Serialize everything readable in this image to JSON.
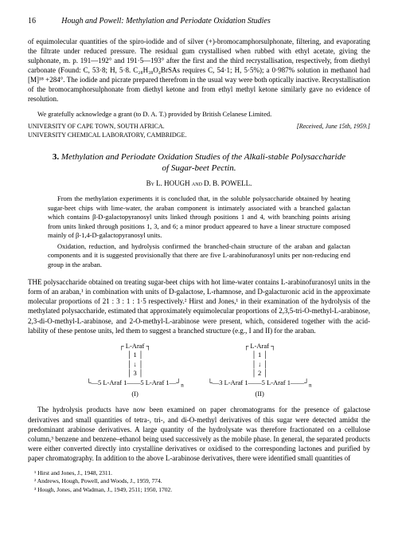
{
  "page_number": "16",
  "running_header": "Hough and Powell: Methylation and Periodate Oxidation Studies",
  "continuation_para": "of equimolecular quantities of the spiro-iodide and of silver (+)-bromocamphorsulphonate, filtering, and evaporating the filtrate under reduced pressure. The residual gum crystallised when rubbed with ethyl acetate, giving the sulphonate, m. p. 191—192° and 191·5—193° after the first and the third recrystallisation, respectively, from diethyl carbonate (Found: C, 53·8; H, 5·8. C₂₈H₃₈O₄BrSAs requires C, 54·1; H, 5·5%); a 0·987% solution in methanol had [M]¹⁸ +284°. The iodide and picrate prepared therefrom in the usual way were both optically inactive. Recrystallisation of the bromocamphorsulphonate from diethyl ketone and from ethyl methyl ketone similarly gave no evidence of resolution.",
  "acknowledgement": "We gratefully acknowledge a grant (to D. A. T.) provided by British Celanese Limited.",
  "affiliation1": "UNIVERSITY OF CAPE TOWN, SOUTH AFRICA.",
  "affiliation2": "UNIVERSITY CHEMICAL LABORATORY, CAMBRIDGE.",
  "received_date": "[Received, June 15th, 1959.]",
  "article_number": "3.",
  "article_title": "Methylation and Periodate Oxidation Studies of the Alkali-stable Polysaccharide of Sugar-beet Pectin.",
  "authors": "By L. HOUGH and D. B. POWELL.",
  "abstract_p1": "From the methylation experiments it is concluded that, in the soluble polysaccharide obtained by heating sugar-beet chips with lime-water, the araban component is intimately associated with a branched galactan which contains β-D-galactopyranosyl units linked through positions 1 and 4, with branching points arising from units linked through positions 1, 3, and 6; a minor product appeared to have a linear structure composed mainly of β-1,4-D-galactopyranosyl units.",
  "abstract_p2": "Oxidation, reduction, and hydrolysis confirmed the branched-chain structure of the araban and galactan components and it is suggested provisionally that there are five L-arabinofuranosyl units per non-reducing end group in the araban.",
  "body_p1_a": "THE",
  "body_p1_b": " polysaccharide obtained on treating sugar-beet chips with hot lime-water contains L-arabinofuranosyl units in the form of an araban,¹ in combination with units of D-galactose, L-rhamnose, and D-galacturonic acid in the approximate molecular proportions of 21 : 3 : 1 : 1·5 respectively.² Hirst and Jones,¹ in their examination of the hydrolysis of the methylated polysaccharide, estimated that approximately equimolecular proportions of 2,3,5-tri-O-methyl-L-arabinose, 2,3-di-O-methyl-L-arabinose, and 2-O-methyl-L-arabinose were present, which, considered together with the acid-lability of these pentose units, led them to suggest a branched structure (e.g., I and II) for the araban.",
  "struct1_top": "L-Araf",
  "struct1_mid1": "1",
  "struct1_mid2": "3",
  "struct1_bottom": "—5 L-Araf 1——5 L-Araf 1—",
  "struct1_label": "(I)",
  "struct2_top": "L-Araf",
  "struct2_mid1": "1",
  "struct2_mid2": "2",
  "struct2_bottom": "—3 L-Araf 1——5 L-Araf 1——",
  "struct2_label": "(II)",
  "struct2_sub": "n",
  "body_p2": "The hydrolysis products have now been examined on paper chromatograms for the presence of galactose derivatives and small quantities of tetra-, tri-, and di-O-methyl derivatives of this sugar were detected amidst the predominant arabinose derivatives. A large quantity of the hydrolysate was therefore fractionated on a cellulose column,³ benzene and benzene–ethanol being used successively as the mobile phase. In general, the separated products were either converted directly into crystalline derivatives or oxidised to the corresponding lactones and purified by paper chromatography. In addition to the above L-arabinose derivatives, there were identified small quantities of",
  "footnote1": "¹ Hirst and Jones, J., 1948, 2311.",
  "footnote2": "² Andrews, Hough, Powell, and Woods, J., 1959, 774.",
  "footnote3": "³ Hough, Jones, and Wadman, J., 1949, 2511; 1950, 1702."
}
